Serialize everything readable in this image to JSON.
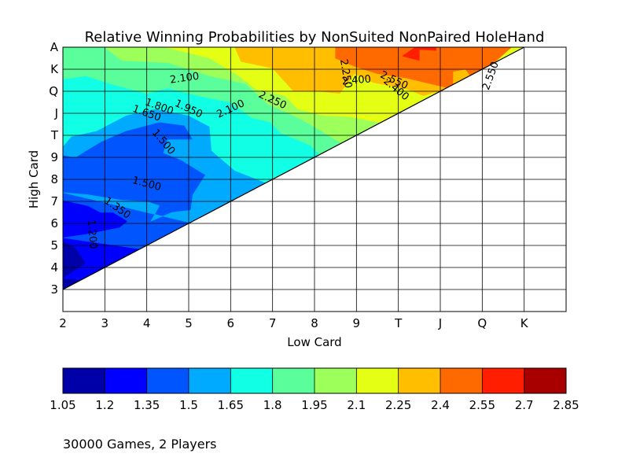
{
  "chart_data": {
    "type": "heatmap",
    "title": "Relative Winning Probabilities by NonSuited NonPaired HoleHand",
    "xlabel": "Low Card",
    "ylabel": "High Card",
    "x_ticks": [
      "2",
      "3",
      "4",
      "5",
      "6",
      "7",
      "8",
      "9",
      "T",
      "J",
      "Q",
      "K"
    ],
    "y_ticks": [
      "3",
      "4",
      "5",
      "6",
      "7",
      "8",
      "9",
      "T",
      "J",
      "Q",
      "K",
      "A"
    ],
    "grid": true,
    "colorbar": {
      "placement": "bottom",
      "levels": [
        "1.05",
        "1.2",
        "1.35",
        "1.5",
        "1.65",
        "1.8",
        "1.95",
        "2.1",
        "2.25",
        "2.4",
        "2.55",
        "2.7",
        "2.85"
      ],
      "colors": [
        "#0000a8",
        "#0000ff",
        "#0055ff",
        "#00aaff",
        "#11ffe4",
        "#5aff9c",
        "#9cff5a",
        "#e4ff13",
        "#ffbe00",
        "#ff6a00",
        "#ff1e00",
        "#a80000"
      ]
    },
    "contour_labels": [
      {
        "text": "2.100",
        "x": 4.9,
        "y": 12.6,
        "angle": -8
      },
      {
        "text": "1.800",
        "x": 4.3,
        "y": 11.3,
        "angle": 20
      },
      {
        "text": "1.650",
        "x": 4.0,
        "y": 11.0,
        "angle": 20
      },
      {
        "text": "1.950",
        "x": 5.0,
        "y": 11.2,
        "angle": 25
      },
      {
        "text": "2.100",
        "x": 6.0,
        "y": 11.2,
        "angle": -25
      },
      {
        "text": "2.250",
        "x": 7.0,
        "y": 11.6,
        "angle": 25
      },
      {
        "text": "2.250",
        "x": 8.75,
        "y": 12.8,
        "angle": 80
      },
      {
        "text": "2.400",
        "x": 9.0,
        "y": 12.5,
        "angle": -5
      },
      {
        "text": "2.550",
        "x": 9.9,
        "y": 12.5,
        "angle": 25
      },
      {
        "text": "2.400",
        "x": 9.95,
        "y": 12.1,
        "angle": 40
      },
      {
        "text": "2.550",
        "x": 12.2,
        "y": 12.7,
        "angle": -70
      },
      {
        "text": "1.500",
        "x": 4.4,
        "y": 9.7,
        "angle": 50
      },
      {
        "text": "1.500",
        "x": 4.0,
        "y": 7.8,
        "angle": 15
      },
      {
        "text": "1.350",
        "x": 3.3,
        "y": 6.7,
        "angle": 35
      },
      {
        "text": "1.200",
        "x": 2.7,
        "y": 5.5,
        "angle": 85
      }
    ]
  },
  "footnote": "30000 Games,  2 Players"
}
